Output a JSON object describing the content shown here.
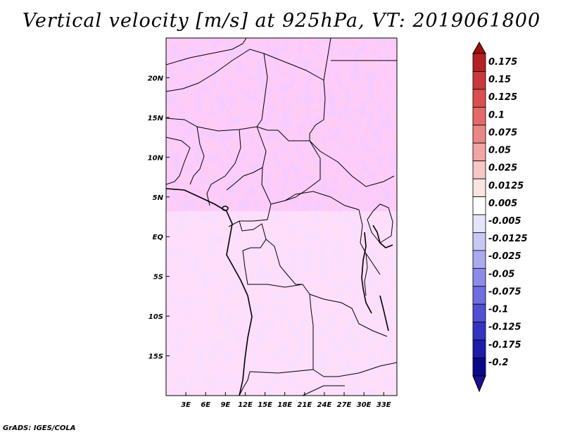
{
  "title": "Vertical velocity [m/s] at 925hPa, VT: 2019061800",
  "footer": "GrADS: IGES/COLA",
  "map": {
    "lon_range": [
      0,
      35
    ],
    "lat_range": [
      -20,
      25
    ],
    "lon_ticks": [
      "3E",
      "6E",
      "9E",
      "12E",
      "15E",
      "18E",
      "21E",
      "24E",
      "27E",
      "30E",
      "33E"
    ],
    "lat_ticks": [
      "20N",
      "15N",
      "10N",
      "5N",
      "EQ",
      "5S",
      "10S",
      "15S"
    ]
  },
  "colorbar": {
    "labels": [
      "0.175",
      "0.15",
      "0.125",
      "0.1",
      "0.075",
      "0.05",
      "0.025",
      "0.0125",
      "0.005",
      "-0.005",
      "-0.0125",
      "-0.025",
      "-0.05",
      "-0.075",
      "-0.1",
      "-0.125",
      "-0.175",
      "-0.2"
    ],
    "colors": [
      "#b52025",
      "#c8383c",
      "#d9504f",
      "#e36a67",
      "#ea8783",
      "#f0a6a2",
      "#f6c7c4",
      "#fbe3e1",
      "#ffffff",
      "#e4e4fb",
      "#c8c8f4",
      "#aaaaef",
      "#8c8ce8",
      "#6e6edf",
      "#5050d3",
      "#3434c3",
      "#1c1caa",
      "#0a0a88"
    ],
    "top_arrow_color": "#a01010",
    "bottom_arrow_color": "#1a1090"
  }
}
